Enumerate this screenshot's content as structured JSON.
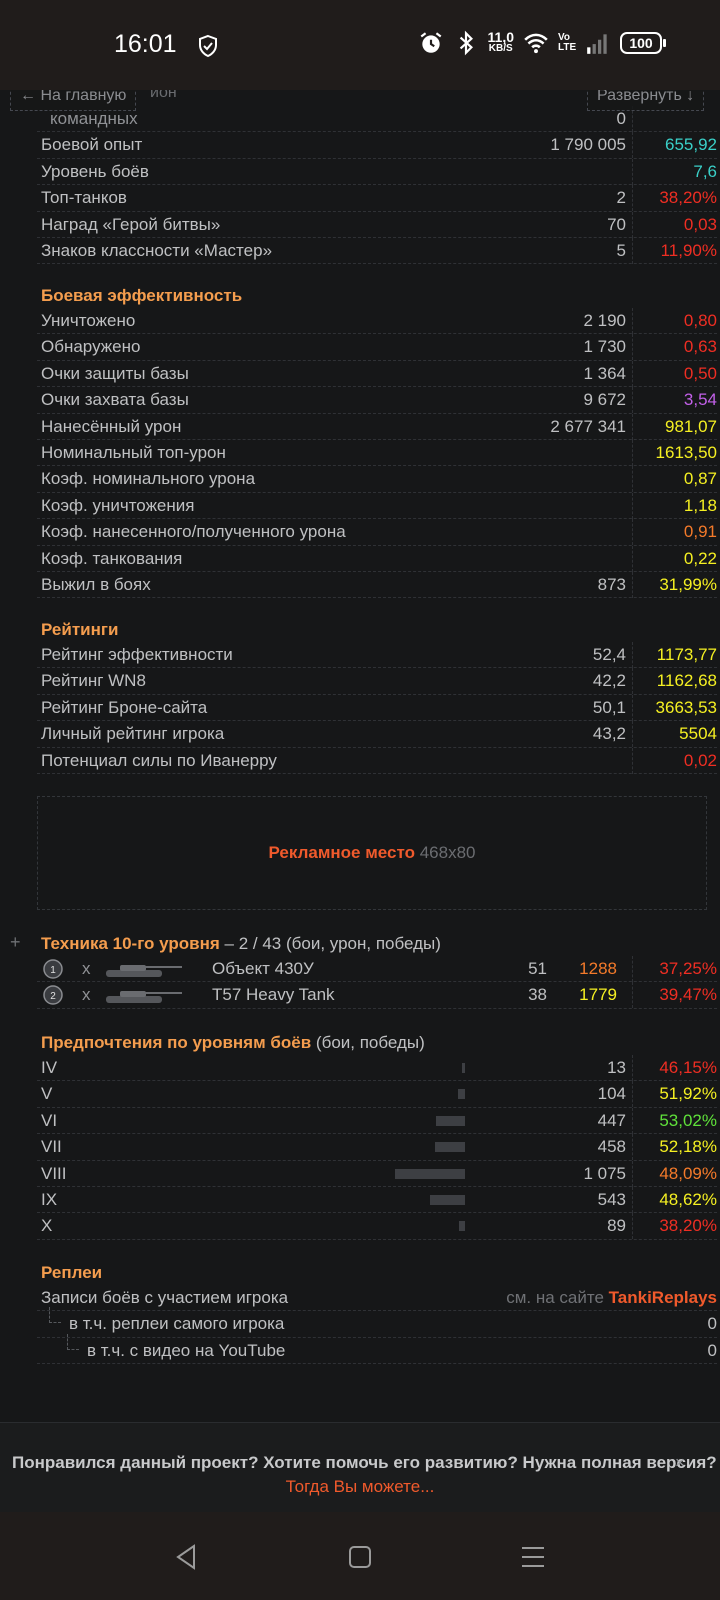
{
  "status": {
    "time": "16:01",
    "net_speed": "11,0",
    "net_unit": "KB/S",
    "volte": "Vo LTE",
    "battery": "100"
  },
  "nav": {
    "home": "← На главную",
    "expand": "Развернуть ↓",
    "hidden_behind": "йон"
  },
  "top_rows": [
    {
      "label": "командных",
      "value": "0",
      "stat": "",
      "indent": true,
      "color": ""
    },
    {
      "label": "Боевой опыт",
      "value": "1 790 005",
      "stat": "655,92",
      "color": "teal"
    },
    {
      "label": "Уровень боёв",
      "value": "",
      "stat": "7,6",
      "color": "teal"
    },
    {
      "label": "Топ-танков",
      "value": "2",
      "stat": "38,20%",
      "color": "red"
    },
    {
      "label": "Наград «Герой битвы»",
      "value": "70",
      "stat": "0,03",
      "color": "red"
    },
    {
      "label": "Знаков классности «Мастер»",
      "value": "5",
      "stat": "11,90%",
      "color": "red"
    }
  ],
  "combat": {
    "title": "Боевая эффективность",
    "rows": [
      {
        "label": "Уничтожено",
        "value": "2 190",
        "stat": "0,80",
        "color": "red"
      },
      {
        "label": "Обнаружено",
        "value": "1 730",
        "stat": "0,63",
        "color": "red"
      },
      {
        "label": "Очки защиты базы",
        "value": "1 364",
        "stat": "0,50",
        "color": "red"
      },
      {
        "label": "Очки захвата базы",
        "value": "9 672",
        "stat": "3,54",
        "color": "purple"
      },
      {
        "label": "Нанесённый урон",
        "value": "2 677 341",
        "stat": "981,07",
        "color": "yellow"
      },
      {
        "label": "Номинальный топ-урон",
        "value": "",
        "stat": "1613,50",
        "color": "yellow"
      },
      {
        "label": "Коэф. номинального урона",
        "value": "",
        "stat": "0,87",
        "color": "yellow"
      },
      {
        "label": "Коэф. уничтожения",
        "value": "",
        "stat": "1,18",
        "color": "yellow"
      },
      {
        "label": "Коэф. нанесенного/полученного урона",
        "value": "",
        "stat": "0,91",
        "color": "orange"
      },
      {
        "label": "Коэф. танкования",
        "value": "",
        "stat": "0,22",
        "color": "yellow"
      },
      {
        "label": "Выжил в боях",
        "value": "873",
        "stat": "31,99%",
        "color": "yellow"
      }
    ]
  },
  "ratings": {
    "title": "Рейтинги",
    "rows": [
      {
        "label": "Рейтинг эффективности",
        "value": "52,4",
        "stat": "1173,77",
        "color": "yellow"
      },
      {
        "label": "Рейтинг WN8",
        "value": "42,2",
        "stat": "1162,68",
        "color": "yellow"
      },
      {
        "label": "Рейтинг Броне-сайта",
        "value": "50,1",
        "stat": "3663,53",
        "color": "yellow"
      },
      {
        "label": "Личный рейтинг игрока",
        "value": "43,2",
        "stat": "5504",
        "color": "yellow"
      },
      {
        "label": "Потенциал силы по Иванерру",
        "value": "",
        "stat": "0,02",
        "color": "red"
      }
    ]
  },
  "ad": {
    "label": "Рекламное место",
    "size": "468x80"
  },
  "tier10": {
    "plus": "+",
    "title": "Техника 10-го уровня",
    "subtitle": " – 2 / 43 (бои, урон, победы)",
    "tanks": [
      {
        "medal": "1",
        "x": "x",
        "name": "Объект 430У",
        "battles": "51",
        "damage": "1288",
        "damage_color": "orange",
        "winrate": "37,25%",
        "winrate_color": "red"
      },
      {
        "medal": "2",
        "x": "x",
        "name": "T57 Heavy Tank",
        "battles": "38",
        "damage": "1779",
        "damage_color": "yellow",
        "winrate": "39,47%",
        "winrate_color": "red"
      }
    ]
  },
  "tiers": {
    "title": "Предпочтения по уровням боёв",
    "subtitle": " (бои, победы)",
    "rows": [
      {
        "label": "IV",
        "battles": "13",
        "share": 0.012,
        "winrate": "46,15%",
        "color": "red"
      },
      {
        "label": "V",
        "battles": "104",
        "share": 0.097,
        "winrate": "51,92%",
        "color": "yellow"
      },
      {
        "label": "VI",
        "battles": "447",
        "share": 0.416,
        "winrate": "53,02%",
        "color": "green"
      },
      {
        "label": "VII",
        "battles": "458",
        "share": 0.426,
        "winrate": "52,18%",
        "color": "yellow"
      },
      {
        "label": "VIII",
        "battles": "1 075",
        "share": 1.0,
        "winrate": "48,09%",
        "color": "orange"
      },
      {
        "label": "IX",
        "battles": "543",
        "share": 0.505,
        "winrate": "48,62%",
        "color": "yellow"
      },
      {
        "label": "X",
        "battles": "89",
        "share": 0.083,
        "winrate": "38,20%",
        "color": "red"
      }
    ]
  },
  "replays": {
    "title": "Реплеи",
    "records_label": "Записи боёв с участием игрока",
    "records_prefix": "см. на сайте ",
    "records_link": "TankiReplays",
    "own_label": "в т.ч. реплеи самого игрока",
    "own_value": "0",
    "youtube_label": "в т.ч. с видео на YouTube",
    "youtube_value": "0"
  },
  "footer": {
    "question": "Понравился данный проект? Хотите помочь его развитию? Нужна полная версия?",
    "link": "Тогда Вы можете...",
    "close": "×"
  }
}
